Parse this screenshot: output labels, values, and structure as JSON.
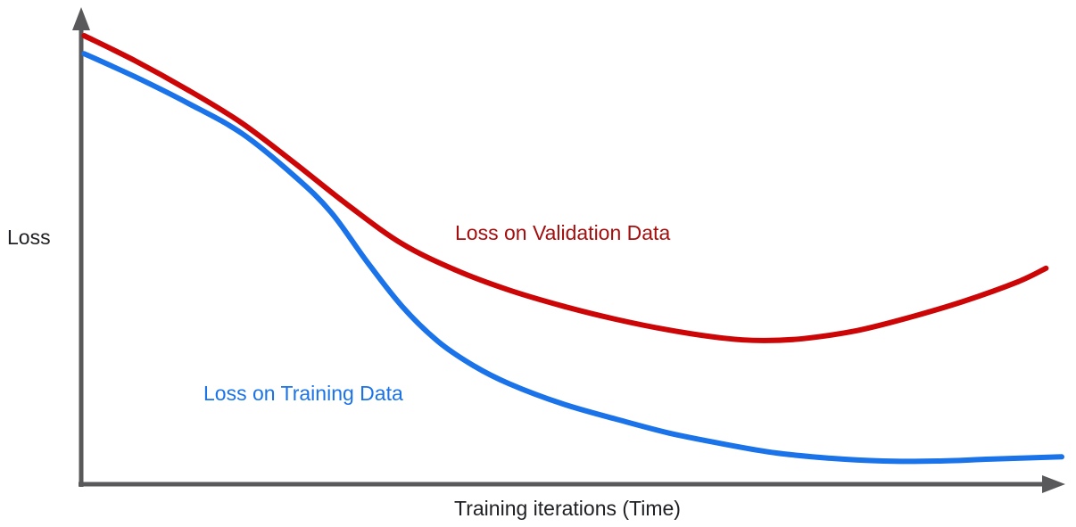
{
  "figure": {
    "description": "Conceptual overfitting chart: training loss keeps decreasing while validation loss decreases then rises again",
    "background": "#ffffff",
    "text_color": "#202124"
  },
  "chart_data": {
    "type": "line",
    "title": "",
    "xlabel": "Training iterations (Time)",
    "ylabel": "Loss",
    "grid": false,
    "legend": "inline-labels",
    "axis_color": "#59595b",
    "x_axis": {
      "min": 0,
      "max": 100,
      "ticks": [],
      "note": "no tick labels; x given as percent of axis length"
    },
    "y_axis": {
      "min": 0,
      "max": 100,
      "ticks": [],
      "note": "no tick labels; y given as percent of axis height (100 = top)"
    },
    "series": [
      {
        "name": "Loss on Validation Data",
        "color": "#cc0606",
        "label_color": "#a50e0e",
        "points": [
          [
            0.3,
            94.9
          ],
          [
            5.5,
            89.6
          ],
          [
            10.9,
            83.4
          ],
          [
            16.4,
            76.4
          ],
          [
            21.8,
            67.9
          ],
          [
            27.3,
            58.9
          ],
          [
            32.7,
            50.9
          ],
          [
            38.2,
            45.3
          ],
          [
            43.6,
            41.1
          ],
          [
            49.1,
            37.7
          ],
          [
            54.5,
            34.9
          ],
          [
            60.0,
            32.6
          ],
          [
            65.5,
            30.9
          ],
          [
            69.5,
            30.4
          ],
          [
            73.6,
            30.8
          ],
          [
            79.1,
            32.5
          ],
          [
            84.5,
            35.3
          ],
          [
            90.0,
            38.7
          ],
          [
            95.5,
            42.8
          ],
          [
            98.4,
            45.7
          ]
        ]
      },
      {
        "name": "Loss on Training Data",
        "color": "#1a73e8",
        "label_color": "#1a73e8",
        "points": [
          [
            0.3,
            91.1
          ],
          [
            5.5,
            86.2
          ],
          [
            10.9,
            80.6
          ],
          [
            16.4,
            74.2
          ],
          [
            21.8,
            65.1
          ],
          [
            25.5,
            57.5
          ],
          [
            29.1,
            47.2
          ],
          [
            32.7,
            37.7
          ],
          [
            36.4,
            30.2
          ],
          [
            40.0,
            25.1
          ],
          [
            43.6,
            21.3
          ],
          [
            49.1,
            17.0
          ],
          [
            54.5,
            13.8
          ],
          [
            60.0,
            10.8
          ],
          [
            65.5,
            8.5
          ],
          [
            70.9,
            6.6
          ],
          [
            76.4,
            5.5
          ],
          [
            81.8,
            4.9
          ],
          [
            87.3,
            4.9
          ],
          [
            92.7,
            5.3
          ],
          [
            100.0,
            5.8
          ]
        ]
      }
    ]
  }
}
